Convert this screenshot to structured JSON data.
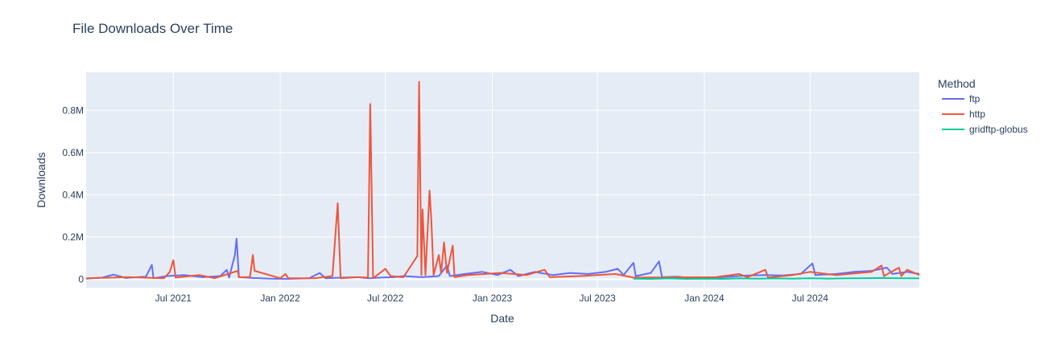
{
  "chart_data": {
    "type": "line",
    "title": "File Downloads Over Time",
    "xlabel": "Date",
    "ylabel": "Downloads",
    "x_range": [
      "2021-02-01",
      "2025-01-05"
    ],
    "ylim": [
      -40000,
      980000
    ],
    "x_ticks": [
      {
        "date": "2021-07-01",
        "label": "Jul 2021"
      },
      {
        "date": "2022-01-01",
        "label": "Jan 2022"
      },
      {
        "date": "2022-07-01",
        "label": "Jul 2022"
      },
      {
        "date": "2023-01-01",
        "label": "Jan 2023"
      },
      {
        "date": "2023-07-01",
        "label": "Jul 2023"
      },
      {
        "date": "2024-01-01",
        "label": "Jan 2024"
      },
      {
        "date": "2024-07-01",
        "label": "Jul 2024"
      }
    ],
    "y_ticks": [
      {
        "value": 0,
        "label": "0"
      },
      {
        "value": 200000,
        "label": "0.2M"
      },
      {
        "value": 400000,
        "label": "0.4M"
      },
      {
        "value": 600000,
        "label": "0.6M"
      },
      {
        "value": 800000,
        "label": "0.8M"
      }
    ],
    "grid": true,
    "legend": {
      "title": "Method",
      "position": "right"
    },
    "series": [
      {
        "name": "ftp",
        "color": "#636efa",
        "points": [
          [
            "2021-02-01",
            3000
          ],
          [
            "2021-03-01",
            8000
          ],
          [
            "2021-03-20",
            22000
          ],
          [
            "2021-04-10",
            6000
          ],
          [
            "2021-05-15",
            12000
          ],
          [
            "2021-05-25",
            68000
          ],
          [
            "2021-05-28",
            5000
          ],
          [
            "2021-06-20",
            15000
          ],
          [
            "2021-07-20",
            20000
          ],
          [
            "2021-08-20",
            10000
          ],
          [
            "2021-09-20",
            15000
          ],
          [
            "2021-10-01",
            45000
          ],
          [
            "2021-10-05",
            8000
          ],
          [
            "2021-10-15",
            115000
          ],
          [
            "2021-10-18",
            192000
          ],
          [
            "2021-10-22",
            10000
          ],
          [
            "2021-11-15",
            6000
          ],
          [
            "2021-12-15",
            3000
          ],
          [
            "2022-01-15",
            2000
          ],
          [
            "2022-02-20",
            5000
          ],
          [
            "2022-03-10",
            30000
          ],
          [
            "2022-03-20",
            5000
          ],
          [
            "2022-04-20",
            8000
          ],
          [
            "2022-05-15",
            10000
          ],
          [
            "2022-06-01",
            5000
          ],
          [
            "2022-06-25",
            8000
          ],
          [
            "2022-07-15",
            10000
          ],
          [
            "2022-08-01",
            15000
          ],
          [
            "2022-09-01",
            10000
          ],
          [
            "2022-10-01",
            15000
          ],
          [
            "2022-10-15",
            65000
          ],
          [
            "2022-10-20",
            15000
          ],
          [
            "2022-11-15",
            25000
          ],
          [
            "2022-12-15",
            35000
          ],
          [
            "2023-01-10",
            20000
          ],
          [
            "2023-02-01",
            45000
          ],
          [
            "2023-02-15",
            15000
          ],
          [
            "2023-03-15",
            35000
          ],
          [
            "2023-04-15",
            20000
          ],
          [
            "2023-05-15",
            30000
          ],
          [
            "2023-06-15",
            25000
          ],
          [
            "2023-07-15",
            35000
          ],
          [
            "2023-08-05",
            50000
          ],
          [
            "2023-08-15",
            20000
          ],
          [
            "2023-09-01",
            78000
          ],
          [
            "2023-09-05",
            15000
          ],
          [
            "2023-10-01",
            30000
          ],
          [
            "2023-10-15",
            85000
          ],
          [
            "2023-10-20",
            10000
          ],
          [
            "2023-11-15",
            12000
          ],
          [
            "2023-12-15",
            5000
          ],
          [
            "2024-01-15",
            8000
          ],
          [
            "2024-02-15",
            12000
          ],
          [
            "2024-03-15",
            18000
          ],
          [
            "2024-04-15",
            20000
          ],
          [
            "2024-05-15",
            18000
          ],
          [
            "2024-06-15",
            25000
          ],
          [
            "2024-07-05",
            75000
          ],
          [
            "2024-07-10",
            20000
          ],
          [
            "2024-08-15",
            25000
          ],
          [
            "2024-09-15",
            35000
          ],
          [
            "2024-10-15",
            40000
          ],
          [
            "2024-11-10",
            55000
          ],
          [
            "2024-11-20",
            25000
          ],
          [
            "2024-12-15",
            35000
          ],
          [
            "2025-01-05",
            25000
          ]
        ]
      },
      {
        "name": "http",
        "color": "#ef553b",
        "points": [
          [
            "2021-02-01",
            5000
          ],
          [
            "2021-04-15",
            10000
          ],
          [
            "2021-06-15",
            5000
          ],
          [
            "2021-06-25",
            35000
          ],
          [
            "2021-07-01",
            90000
          ],
          [
            "2021-07-05",
            8000
          ],
          [
            "2021-08-15",
            20000
          ],
          [
            "2021-09-10",
            5000
          ],
          [
            "2021-10-20",
            40000
          ],
          [
            "2021-10-22",
            10000
          ],
          [
            "2021-11-10",
            10000
          ],
          [
            "2021-11-15",
            115000
          ],
          [
            "2021-11-18",
            40000
          ],
          [
            "2022-01-01",
            5000
          ],
          [
            "2022-01-10",
            25000
          ],
          [
            "2022-01-15",
            5000
          ],
          [
            "2022-03-01",
            5000
          ],
          [
            "2022-04-01",
            15000
          ],
          [
            "2022-04-10",
            360000
          ],
          [
            "2022-04-15",
            5000
          ],
          [
            "2022-05-15",
            10000
          ],
          [
            "2022-06-01",
            8000
          ],
          [
            "2022-06-05",
            830000
          ],
          [
            "2022-06-10",
            5000
          ],
          [
            "2022-07-01",
            50000
          ],
          [
            "2022-07-10",
            15000
          ],
          [
            "2022-08-01",
            10000
          ],
          [
            "2022-08-25",
            110000
          ],
          [
            "2022-08-28",
            935000
          ],
          [
            "2022-09-01",
            20000
          ],
          [
            "2022-09-03",
            330000
          ],
          [
            "2022-09-08",
            20000
          ],
          [
            "2022-09-15",
            420000
          ],
          [
            "2022-09-18",
            290000
          ],
          [
            "2022-09-22",
            20000
          ],
          [
            "2022-10-01",
            115000
          ],
          [
            "2022-10-05",
            30000
          ],
          [
            "2022-10-10",
            175000
          ],
          [
            "2022-10-15",
            30000
          ],
          [
            "2022-10-25",
            160000
          ],
          [
            "2022-10-28",
            10000
          ],
          [
            "2022-11-20",
            20000
          ],
          [
            "2023-01-15",
            30000
          ],
          [
            "2023-03-01",
            20000
          ],
          [
            "2023-04-01",
            45000
          ],
          [
            "2023-04-10",
            10000
          ],
          [
            "2023-06-01",
            15000
          ],
          [
            "2023-08-01",
            25000
          ],
          [
            "2023-09-01",
            8000
          ],
          [
            "2024-01-20",
            10000
          ],
          [
            "2024-03-01",
            25000
          ],
          [
            "2024-03-15",
            10000
          ],
          [
            "2024-04-15",
            45000
          ],
          [
            "2024-04-20",
            8000
          ],
          [
            "2024-06-01",
            20000
          ],
          [
            "2024-07-01",
            35000
          ],
          [
            "2024-08-15",
            20000
          ],
          [
            "2024-10-15",
            35000
          ],
          [
            "2024-11-01",
            65000
          ],
          [
            "2024-11-05",
            15000
          ],
          [
            "2024-12-01",
            55000
          ],
          [
            "2024-12-05",
            15000
          ],
          [
            "2024-12-15",
            45000
          ],
          [
            "2025-01-05",
            20000
          ]
        ]
      },
      {
        "name": "gridftp-globus",
        "color": "#00cc96",
        "points": [
          [
            "2023-09-01",
            3000
          ],
          [
            "2023-10-01",
            2000
          ],
          [
            "2023-11-01",
            4000
          ],
          [
            "2023-12-01",
            2000
          ],
          [
            "2024-01-01",
            3000
          ],
          [
            "2024-02-01",
            2000
          ],
          [
            "2024-03-01",
            4000
          ],
          [
            "2024-04-01",
            3000
          ],
          [
            "2024-05-01",
            4000
          ],
          [
            "2024-06-01",
            3000
          ],
          [
            "2024-07-01",
            5000
          ],
          [
            "2024-08-01",
            3000
          ],
          [
            "2024-09-01",
            4000
          ],
          [
            "2024-10-01",
            5000
          ],
          [
            "2024-11-01",
            6000
          ],
          [
            "2024-12-01",
            5000
          ],
          [
            "2025-01-05",
            4000
          ]
        ]
      }
    ]
  }
}
